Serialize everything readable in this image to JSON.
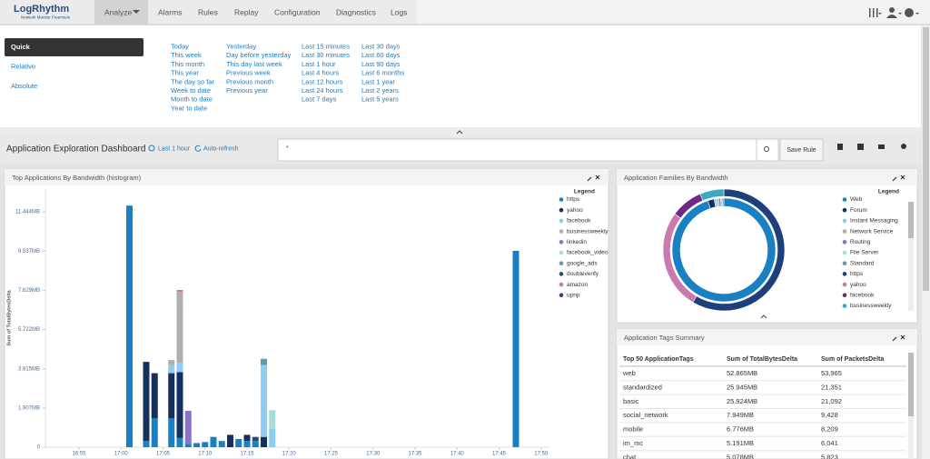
{
  "nav": {
    "logo": "LogRhythm",
    "logo_sub": "Network Monitor Freemium",
    "tabs": [
      "Analyze",
      "Alarms",
      "Rules",
      "Replay",
      "Configuration",
      "Diagnostics",
      "Logs"
    ]
  },
  "time_picker": {
    "modes": [
      "Quick",
      "Relative",
      "Absolute"
    ],
    "columns": [
      [
        "Today",
        "This week",
        "This month",
        "This year",
        "The day so far",
        "Week to date",
        "Month to date",
        "Year to date"
      ],
      [
        "Yesterday",
        "Day before yesterday",
        "This day last week",
        "Previous week",
        "Previous month",
        "Previous year"
      ],
      [
        "Last 15 minutes",
        "Last 30 minutes",
        "Last 1 hour",
        "Last 4 hours",
        "Last 12 hours",
        "Last 24 hours",
        "Last 7 days"
      ],
      [
        "Last 30 days",
        "Last 60 days",
        "Last 90 days",
        "Last 6 months",
        "Last 1 year",
        "Last 2 years",
        "Last 5 years"
      ]
    ]
  },
  "dashboard": {
    "title": "Application Exploration Dashboard",
    "time_range": "Last 1 hour",
    "refresh": "Auto-refresh",
    "query": "*",
    "save_button": "Save Rule"
  },
  "chart_data": [
    {
      "type": "bar",
      "stacked": true,
      "title": "Top Applications By Bandwidth (histogram)",
      "y_label": "Sum of TotalBytesDelta",
      "legend_title": "Legend",
      "x": [
        "17:01",
        "17:03",
        "17:04",
        "17:06",
        "17:07",
        "17:08",
        "17:09",
        "17:10",
        "17:11",
        "17:12",
        "17:13",
        "17:14",
        "17:15",
        "17:16",
        "17:17",
        "17:18",
        "17:47"
      ],
      "xlim": [
        "16:51",
        "17:51"
      ],
      "xticks": [
        "16:55",
        "17:00",
        "17:05",
        "17:10",
        "17:15",
        "17:20",
        "17:25",
        "17:30",
        "17:35",
        "17:40",
        "17:45",
        "17:50"
      ],
      "ylim": [
        0,
        12.6
      ],
      "yticks": [
        0,
        {
          "value": 1.907,
          "label": "1.907MB"
        },
        {
          "value": 3.815,
          "label": "3.815MB"
        },
        {
          "value": 5.722,
          "label": "5.722MB"
        },
        {
          "value": 7.629,
          "label": "7.629MB"
        },
        {
          "value": 9.537,
          "label": "9.537MB"
        },
        {
          "value": 11.444,
          "label": "11.444MB"
        }
      ],
      "series": [
        {
          "name": "https",
          "color": "#1a80c4",
          "values": [
            11.75,
            0.3,
            1.4,
            1.4,
            0.45,
            0.17,
            0.2,
            0.25,
            0.5,
            0.3,
            0,
            0.4,
            0.3,
            0.3,
            0,
            0,
            9.55
          ]
        },
        {
          "name": "yahoo",
          "color": "#13315c",
          "values": [
            0,
            3.85,
            2.2,
            2.2,
            3.2,
            0,
            0,
            0,
            0,
            0,
            0.6,
            0,
            0.3,
            0,
            0.5,
            0,
            0
          ]
        },
        {
          "name": "facebook",
          "color": "#8fcdf2",
          "values": [
            0,
            0,
            0,
            0.4,
            0.45,
            0,
            0,
            0,
            0,
            0,
            0,
            0,
            0,
            0,
            3.5,
            0.9,
            0
          ]
        },
        {
          "name": "businessweekly",
          "color": "#b0b0b0",
          "values": [
            0,
            0,
            0,
            0.24,
            3.45,
            0,
            0,
            0,
            0,
            0,
            0,
            0,
            0,
            0,
            0,
            0,
            0
          ]
        },
        {
          "name": "linkedin",
          "color": "#8a72c8",
          "values": [
            0,
            0,
            0,
            0,
            0,
            1.6,
            0,
            0,
            0,
            0,
            0,
            0,
            0,
            0,
            0,
            0,
            0
          ]
        },
        {
          "name": "facebook_video",
          "color": "#a7dcd8",
          "values": [
            0,
            0,
            0,
            0,
            0,
            0,
            0,
            0,
            0,
            0,
            0,
            0,
            0,
            0,
            0,
            0.9,
            0
          ]
        },
        {
          "name": "google_ads",
          "color": "#5f9fa0",
          "values": [
            0,
            0,
            0,
            0,
            0,
            0,
            0,
            0,
            0,
            0,
            0,
            0,
            0,
            0,
            0.3,
            0,
            0
          ]
        },
        {
          "name": "doubleverify",
          "color": "#2b4a6f",
          "values": [
            0,
            0,
            0,
            0,
            0,
            0,
            0,
            0,
            0,
            0,
            0,
            0,
            0,
            0.2,
            0,
            0,
            0
          ]
        },
        {
          "name": "amazon",
          "color": "#c97bb0",
          "values": [
            0,
            0,
            0,
            0,
            0.1,
            0,
            0,
            0,
            0,
            0,
            0,
            0,
            0,
            0,
            0,
            0,
            0
          ]
        },
        {
          "name": "upnp",
          "color": "#6b2a86",
          "values": [
            0,
            0,
            0,
            0,
            0,
            0,
            0,
            0,
            0,
            0,
            0,
            0,
            0,
            0,
            0,
            0,
            0
          ]
        }
      ]
    },
    {
      "type": "pie",
      "title": "Application Families By Bandwidth",
      "legend_title": "Legend",
      "series": [
        {
          "categories": [
            "Web",
            "Forum",
            "Instant Messaging",
            "Network Service",
            "Routing",
            "File Server",
            "Standard"
          ],
          "colors": [
            "#1a80c4",
            "#13315c",
            "#8fcdf2",
            "#b0b0b0",
            "#8a72c8",
            "#a7dcd8",
            "#5f9fa0"
          ],
          "values": [
            95,
            2,
            0.8,
            0.6,
            0.6,
            0.5,
            0.5
          ]
        },
        {
          "categories": [
            "https",
            "yahoo",
            "facebook",
            "businessweekly"
          ],
          "colors": [
            "#1f3f7a",
            "#c97bb0",
            "#6b2a86",
            "#3aa9c4"
          ],
          "values": [
            55,
            25,
            8,
            6
          ]
        }
      ]
    }
  ],
  "table": {
    "title": "Application Tags Summary",
    "headers": [
      "Top 50 ApplicationTags",
      "Sum of TotalBytesDelta",
      "Sum of PacketsDelta"
    ],
    "rows": [
      [
        "web",
        "52.865MB",
        "53,965"
      ],
      [
        "standardized",
        "25.945MB",
        "21,351"
      ],
      [
        "basic",
        "25.924MB",
        "21,092"
      ],
      [
        "social_network",
        "7.949MB",
        "9,428"
      ],
      [
        "mobile",
        "6.776MB",
        "8,209"
      ],
      [
        "im_mc",
        "5.191MB",
        "6,041"
      ],
      [
        "chat",
        "5.078MB",
        "5,823"
      ]
    ]
  }
}
